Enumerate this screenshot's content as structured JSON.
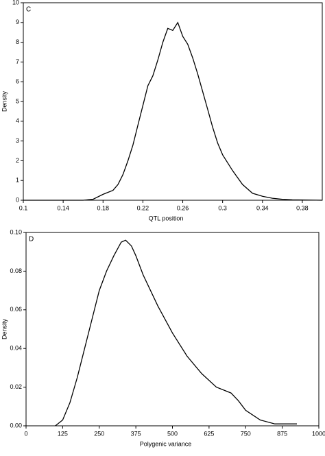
{
  "chart_data": [
    {
      "type": "line",
      "panel_label": "C",
      "xlabel": "QTL position",
      "ylabel": "Density",
      "xlim": [
        0.1,
        0.4
      ],
      "ylim": [
        0,
        10
      ],
      "xticks": [
        0.1,
        0.14,
        0.18,
        0.22,
        0.26,
        0.3,
        0.34,
        0.38
      ],
      "yticks": [
        0,
        1,
        2,
        3,
        4,
        5,
        6,
        7,
        8,
        9,
        10
      ],
      "color": "#000000",
      "x": [
        0.1,
        0.14,
        0.16,
        0.17,
        0.18,
        0.19,
        0.195,
        0.2,
        0.205,
        0.21,
        0.215,
        0.22,
        0.225,
        0.23,
        0.235,
        0.24,
        0.245,
        0.25,
        0.255,
        0.26,
        0.265,
        0.27,
        0.275,
        0.28,
        0.285,
        0.29,
        0.295,
        0.3,
        0.31,
        0.32,
        0.33,
        0.34,
        0.35,
        0.36,
        0.37,
        0.4
      ],
      "values": [
        0,
        0,
        0,
        0.05,
        0.3,
        0.5,
        0.8,
        1.3,
        2.0,
        2.8,
        3.8,
        4.8,
        5.8,
        6.3,
        7.1,
        8.0,
        8.7,
        8.6,
        9.0,
        8.3,
        7.9,
        7.2,
        6.4,
        5.5,
        4.6,
        3.7,
        2.9,
        2.3,
        1.5,
        0.8,
        0.35,
        0.2,
        0.1,
        0.05,
        0.02,
        0
      ]
    },
    {
      "type": "line",
      "panel_label": "D",
      "xlabel": "Polygenic variance",
      "ylabel": "Density",
      "xlim": [
        0,
        1000
      ],
      "ylim": [
        0,
        0.1
      ],
      "xticks": [
        0,
        125,
        250,
        375,
        500,
        625,
        750,
        875,
        1000
      ],
      "yticks": [
        {
          "value": 0,
          "label": "0.00"
        },
        {
          "value": 0.02,
          "label": "0.02"
        },
        {
          "value": 0.04,
          "label": "0.04"
        },
        {
          "value": 0.06,
          "label": "0.06"
        },
        {
          "value": 0.08,
          "label": "0.08"
        },
        {
          "value": 0.1,
          "label": "0.10"
        }
      ],
      "color": "#000000",
      "x": [
        100,
        125,
        150,
        175,
        200,
        225,
        250,
        275,
        300,
        325,
        340,
        360,
        375,
        400,
        450,
        500,
        550,
        600,
        650,
        700,
        725,
        750,
        800,
        850,
        925
      ],
      "values": [
        0,
        0.003,
        0.012,
        0.025,
        0.04,
        0.055,
        0.07,
        0.08,
        0.088,
        0.095,
        0.096,
        0.093,
        0.088,
        0.078,
        0.062,
        0.048,
        0.036,
        0.027,
        0.02,
        0.017,
        0.013,
        0.008,
        0.003,
        0.001,
        0.001
      ]
    }
  ]
}
